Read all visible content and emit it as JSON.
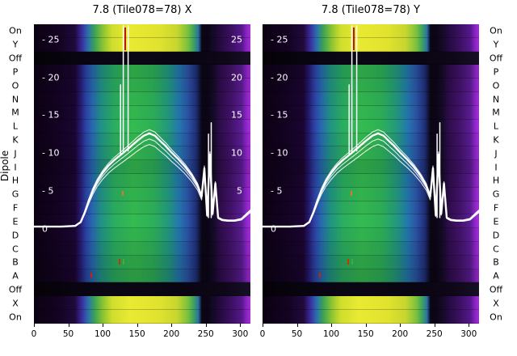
{
  "figure": {
    "ylabel": "Dipole",
    "panels": [
      {
        "title": "7.8 (Tile078=78) X"
      },
      {
        "title": "7.8 (Tile078=78) Y"
      }
    ],
    "row_labels": [
      "On",
      "Y",
      "Off",
      "P",
      "O",
      "N",
      "M",
      "L",
      "K",
      "J",
      "I",
      "H",
      "G",
      "F",
      "E",
      "D",
      "C",
      "B",
      "A",
      "Off",
      "X",
      "On"
    ],
    "row_types": [
      "bright",
      "bright",
      "off",
      "mid",
      "mid",
      "mid",
      "mid",
      "mid",
      "mid",
      "mid",
      "mid",
      "mid",
      "mid",
      "mid",
      "mid",
      "mid",
      "mid",
      "mid",
      "mid",
      "off",
      "bright",
      "bright"
    ],
    "ytick_labels_left": [
      "- 25",
      "- 20",
      "- 15",
      "- 10",
      "- 5",
      "0"
    ],
    "ytick_labels_right": [
      "25",
      "20",
      "15",
      "10",
      "5"
    ],
    "colors": {
      "background": "#ffffff",
      "text": "#000000",
      "line": "#ffffff",
      "cmap_low": "#0b0112",
      "cmap_green": "#32b24c",
      "cmap_yellow": "#e8ea32",
      "cmap_edge": "#a62ad8"
    }
  },
  "chart_data": {
    "type": "heatmap+line",
    "description": "Two per-dipole spectrum heatmaps (X and Y polarisation) with overlaid white bandpass curves; rows are dipoles On/Y/Off/P..A/Off/X/On, x is frequency channel",
    "x_range": [
      0,
      315
    ],
    "y_range": [
      -12.5,
      27
    ],
    "x_ticks": [
      0,
      50,
      100,
      150,
      200,
      250,
      300
    ],
    "y_ticks": [
      25,
      20,
      15,
      10,
      5,
      0
    ],
    "y_ticks_right": [
      25,
      20,
      15,
      10,
      5
    ],
    "line": {
      "x": [
        0,
        40,
        60,
        68,
        74,
        80,
        86,
        92,
        100,
        108,
        116,
        124,
        132,
        140,
        150,
        160,
        168,
        176,
        184,
        192,
        200,
        210,
        220,
        230,
        238,
        244,
        248,
        252,
        256,
        260,
        264,
        268,
        274,
        282,
        292,
        302,
        310,
        315
      ],
      "y": [
        0.3,
        0.3,
        0.4,
        0.9,
        2.2,
        3.8,
        5.2,
        6.3,
        7.4,
        8.3,
        9.0,
        9.6,
        10.2,
        10.8,
        11.6,
        12.3,
        12.6,
        12.3,
        11.6,
        10.9,
        10.1,
        9.2,
        8.2,
        7.0,
        5.8,
        4.3,
        8.0,
        1.8,
        9.8,
        2.0,
        6.0,
        1.5,
        1.2,
        1.1,
        1.1,
        1.3,
        2.0,
        2.4
      ],
      "strand_factors": [
        1,
        0.94,
        0.88,
        1.04
      ]
    },
    "spikes": [
      {
        "x": 130,
        "y0": 10,
        "y1": 26.8
      },
      {
        "x": 137,
        "y0": 10.3,
        "y1": 26.8
      },
      {
        "x": 126,
        "y0": 9.8,
        "y1": 19
      },
      {
        "x": 254,
        "y0": 1.5,
        "y1": 12.5
      },
      {
        "x": 258,
        "y0": 1.5,
        "y1": 14
      }
    ],
    "artifacts": [
      {
        "x": 133,
        "row": 0,
        "h": 28,
        "color": "#b81600"
      },
      {
        "x": 129,
        "row": 12,
        "h": 6,
        "color": "#e07820"
      },
      {
        "x": 125,
        "row": 17,
        "h": 7,
        "color": "#cc3300"
      },
      {
        "x": 131,
        "row": 17,
        "h": 7,
        "color": "#3fae3f"
      },
      {
        "x": 83,
        "row": 18,
        "h": 6,
        "color": "#cc2200"
      }
    ]
  }
}
